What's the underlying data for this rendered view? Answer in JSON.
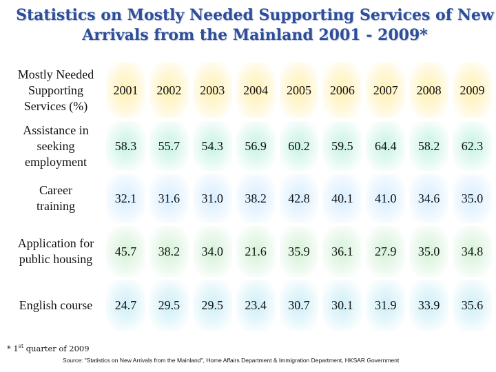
{
  "title": {
    "line1": "Statistics on Mostly Needed Supporting Services of New",
    "line2": "Arrivals from the Mainland 2001 - 2009*"
  },
  "table": {
    "header_label": [
      "Mostly Needed",
      "Supporting",
      "Services (%)"
    ],
    "years": [
      "2001",
      "2002",
      "2003",
      "2004",
      "2005",
      "2006",
      "2007",
      "2008",
      "2009"
    ],
    "rows": [
      {
        "service": [
          "Assistance in",
          "seeking",
          "employment"
        ],
        "values": [
          "58.3",
          "55.7",
          "54.3",
          "56.9",
          "60.2",
          "59.5",
          "64.4",
          "58.2",
          "62.3"
        ]
      },
      {
        "service": [
          "Career",
          "training"
        ],
        "values": [
          "32.1",
          "31.6",
          "31.0",
          "38.2",
          "42.8",
          "40.1",
          "41.0",
          "34.6",
          "35.0"
        ]
      },
      {
        "service": [
          "Application for",
          "public housing"
        ],
        "values": [
          "45.7",
          "38.2",
          "34.0",
          "21.6",
          "35.9",
          "36.1",
          "27.9",
          "35.0",
          "34.8"
        ]
      },
      {
        "service": [
          "English course"
        ],
        "values": [
          "24.7",
          "29.5",
          "29.5",
          "23.4",
          "30.7",
          "30.1",
          "31.9",
          "33.9",
          "35.6"
        ]
      }
    ]
  },
  "footnote": {
    "prefix": "* 1",
    "sup": "st",
    "suffix": " quarter of 2009"
  },
  "source": "Source: \"Statistics on New Arrivals from the Mainland\", Home Affairs Department & Immigration Department, HKSAR Government"
}
